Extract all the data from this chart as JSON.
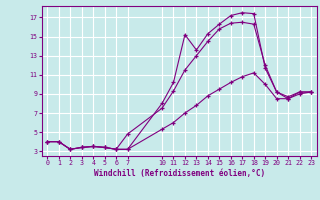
{
  "line1_x": [
    0,
    1,
    2,
    3,
    4,
    5,
    6,
    7,
    10,
    11,
    12,
    13,
    14,
    15,
    16,
    17,
    18,
    19,
    20,
    21,
    22,
    23
  ],
  "line1_y": [
    4.0,
    4.0,
    3.2,
    3.4,
    3.5,
    3.4,
    3.2,
    3.2,
    8.0,
    10.2,
    15.2,
    13.6,
    15.3,
    16.3,
    17.2,
    17.5,
    17.4,
    11.7,
    9.2,
    8.5,
    9.2,
    9.2
  ],
  "line2_x": [
    0,
    1,
    2,
    3,
    4,
    5,
    6,
    7,
    10,
    11,
    12,
    13,
    14,
    15,
    16,
    17,
    18,
    19,
    20,
    21,
    22,
    23
  ],
  "line2_y": [
    4.0,
    4.0,
    3.2,
    3.4,
    3.5,
    3.4,
    3.2,
    4.8,
    7.5,
    9.3,
    11.5,
    13.0,
    14.5,
    15.8,
    16.4,
    16.5,
    16.3,
    12.0,
    9.2,
    8.7,
    9.2,
    9.2
  ],
  "line3_x": [
    0,
    1,
    2,
    3,
    4,
    5,
    6,
    7,
    10,
    11,
    12,
    13,
    14,
    15,
    16,
    17,
    18,
    19,
    20,
    21,
    22,
    23
  ],
  "line3_y": [
    4.0,
    4.0,
    3.2,
    3.4,
    3.5,
    3.4,
    3.2,
    3.2,
    5.3,
    6.0,
    7.0,
    7.8,
    8.8,
    9.5,
    10.2,
    10.8,
    11.2,
    10.0,
    8.5,
    8.5,
    9.0,
    9.2
  ],
  "color": "#800080",
  "bg_color": "#c8eaea",
  "grid_color": "#ffffff",
  "xlabel": "Windchill (Refroidissement éolien,°C)",
  "xlim": [
    -0.5,
    23.5
  ],
  "ylim": [
    2.5,
    18.2
  ],
  "xticks": [
    0,
    1,
    2,
    3,
    4,
    5,
    6,
    7,
    10,
    11,
    12,
    13,
    14,
    15,
    16,
    17,
    18,
    19,
    20,
    21,
    22,
    23
  ],
  "yticks": [
    3,
    5,
    7,
    9,
    11,
    13,
    15,
    17
  ]
}
